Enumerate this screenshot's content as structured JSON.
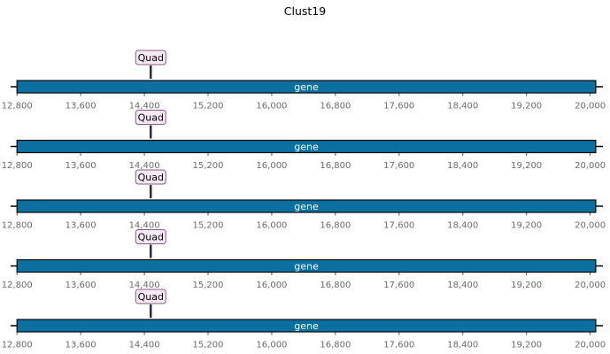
{
  "title": "Clust19",
  "axis": {
    "min": 12720,
    "max": 20160,
    "ticks": [
      12800,
      13600,
      14400,
      15200,
      16000,
      16800,
      17600,
      18400,
      19200,
      20000
    ],
    "tick_labels": [
      "12,800",
      "13,600",
      "14,400",
      "15,200",
      "16,000",
      "16,800",
      "17,600",
      "18,400",
      "19,200",
      "20,000"
    ]
  },
  "tracks": [
    {
      "feature": {
        "label": "gene",
        "start": 12800,
        "end": 20070,
        "color": "#0b6fa0"
      },
      "marker": {
        "label": "Quad",
        "position": 14480,
        "fill": "#f7e9f5",
        "border": "#8a5a88"
      }
    },
    {
      "feature": {
        "label": "gene",
        "start": 12800,
        "end": 20070,
        "color": "#0b6fa0"
      },
      "marker": {
        "label": "Quad",
        "position": 14480,
        "fill": "#f7e9f5",
        "border": "#8a5a88"
      }
    },
    {
      "feature": {
        "label": "gene",
        "start": 12800,
        "end": 20070,
        "color": "#0b6fa0"
      },
      "marker": {
        "label": "Quad",
        "position": 14480,
        "fill": "#f7e9f5",
        "border": "#8a5a88"
      }
    },
    {
      "feature": {
        "label": "gene",
        "start": 12800,
        "end": 20070,
        "color": "#0b6fa0"
      },
      "marker": {
        "label": "Quad",
        "position": 14480,
        "fill": "#f7e9f5",
        "border": "#8a5a88"
      }
    },
    {
      "feature": {
        "label": "gene",
        "start": 12800,
        "end": 20070,
        "color": "#0b6fa0"
      },
      "marker": {
        "label": "Quad",
        "position": 14480,
        "fill": "#f7e9f5",
        "border": "#8a5a88"
      }
    }
  ]
}
